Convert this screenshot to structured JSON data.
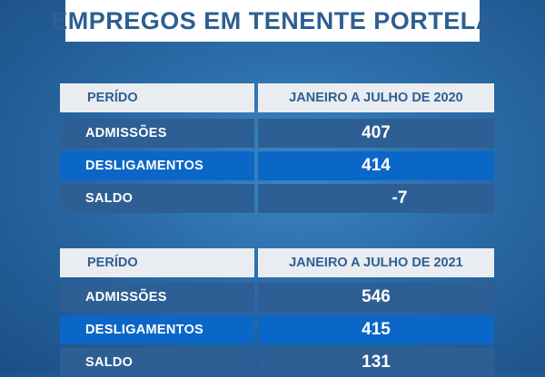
{
  "title": "EMPREGOS EM TENENTE PORTELA",
  "tables": [
    {
      "header": {
        "label": "PERÍDO",
        "period": "JANEIRO A JULHO DE 2020"
      },
      "rows": [
        {
          "label": "ADMISSÕES",
          "value": "407"
        },
        {
          "label": "DESLIGAMENTOS",
          "value": "414"
        },
        {
          "label": "SALDO",
          "value": "-7"
        }
      ]
    },
    {
      "header": {
        "label": "PERÍDO",
        "period": "JANEIRO A JULHO DE 2021"
      },
      "rows": [
        {
          "label": "ADMISSÕES",
          "value": "546"
        },
        {
          "label": "DESLIGAMENTOS",
          "value": "415"
        },
        {
          "label": "SALDO",
          "value": "131"
        }
      ]
    }
  ],
  "colors": {
    "title_text": "#2e5e92",
    "header_bg": "#e9ecf0",
    "row_dark": "#2d5f94",
    "row_highlight": "#0b67c7"
  }
}
